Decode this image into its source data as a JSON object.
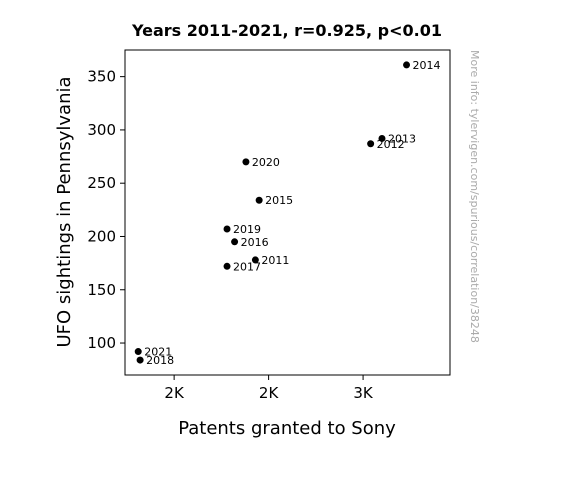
{
  "chart_data": {
    "type": "scatter",
    "title": "Years 2011-2021, r=0.925, p<0.01",
    "xlabel": "Patents granted to Sony",
    "ylabel": "UFO sightings in Pennsylvania",
    "xlim": [
      1240,
      2960
    ],
    "ylim": [
      70,
      375
    ],
    "x_ticks": [
      {
        "value": 1500,
        "label": "2K"
      },
      {
        "value": 2000,
        "label": "2K"
      },
      {
        "value": 2500,
        "label": "3K"
      }
    ],
    "y_ticks": [
      {
        "value": 100,
        "label": "100"
      },
      {
        "value": 150,
        "label": "150"
      },
      {
        "value": 200,
        "label": "200"
      },
      {
        "value": 250,
        "label": "250"
      },
      {
        "value": 300,
        "label": "300"
      },
      {
        "value": 350,
        "label": "350"
      }
    ],
    "points": [
      {
        "label": "2011",
        "x": 1930,
        "y": 178
      },
      {
        "label": "2012",
        "x": 2540,
        "y": 287
      },
      {
        "label": "2013",
        "x": 2600,
        "y": 292
      },
      {
        "label": "2014",
        "x": 2730,
        "y": 361
      },
      {
        "label": "2015",
        "x": 1950,
        "y": 234
      },
      {
        "label": "2016",
        "x": 1820,
        "y": 195
      },
      {
        "label": "2017",
        "x": 1780,
        "y": 172
      },
      {
        "label": "2018",
        "x": 1320,
        "y": 84
      },
      {
        "label": "2019",
        "x": 1780,
        "y": 207
      },
      {
        "label": "2020",
        "x": 1880,
        "y": 270
      },
      {
        "label": "2021",
        "x": 1310,
        "y": 92
      }
    ],
    "grid": false,
    "marker_color": "#000000"
  },
  "watermark": "More info: tylervigen.com/spurious/correlation/38248"
}
